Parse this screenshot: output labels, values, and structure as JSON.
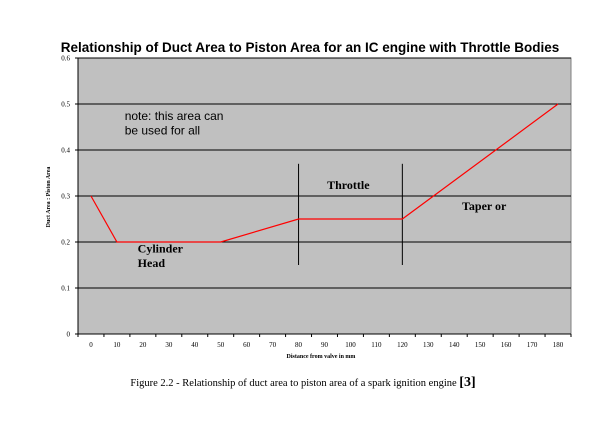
{
  "chart_data": {
    "type": "line",
    "title": "Relationship of Duct Area to Piston Area for an IC engine with Throttle Bodies",
    "xlabel": "Distance from valve in mm",
    "ylabel": "Duct Area : Piston Area",
    "xlim": [
      -5,
      185
    ],
    "ylim": [
      0,
      0.6
    ],
    "x_ticks": [
      0,
      10,
      20,
      30,
      40,
      50,
      60,
      70,
      80,
      90,
      100,
      110,
      120,
      130,
      140,
      150,
      160,
      170,
      180
    ],
    "y_ticks": [
      0,
      0.1,
      0.2,
      0.3,
      0.4,
      0.5,
      0.6
    ],
    "y_tick_labels": [
      "0",
      "0.1",
      "0.2",
      "0.3",
      "0.4",
      "0.5",
      "0.6"
    ],
    "grid": "horizontal",
    "plot_background": "#c0c0c0",
    "series": [
      {
        "color": "#ff0000",
        "x": [
          0,
          10,
          50,
          80,
          120,
          180
        ],
        "y": [
          0.3,
          0.2,
          0.2,
          0.25,
          0.25,
          0.5
        ]
      }
    ],
    "markers": [
      {
        "x": 80,
        "y_range": [
          0.15,
          0.37
        ]
      },
      {
        "x": 120,
        "y_range": [
          0.15,
          0.37
        ]
      }
    ],
    "annotations": [
      {
        "lines": [
          "note: this area can",
          "be used for all"
        ],
        "x": 13,
        "y": 0.465,
        "style": "note"
      },
      {
        "lines": [
          "Throttle"
        ],
        "x": 91,
        "y": 0.315,
        "style": "bold"
      },
      {
        "lines": [
          "Taper or"
        ],
        "x": 143,
        "y": 0.27,
        "style": "bold"
      },
      {
        "lines": [
          "Cylinder",
          "Head"
        ],
        "x": 18,
        "y": 0.177,
        "style": "bold"
      }
    ]
  },
  "caption": {
    "text": "Figure 2.2 - Relationship of duct area to piston area of a spark ignition engine ",
    "ref": "[3]"
  }
}
